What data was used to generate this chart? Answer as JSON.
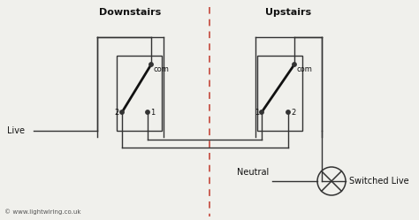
{
  "title_left": "Downstairs",
  "title_right": "Upstairs",
  "label_live": "Live",
  "label_neutral": "Neutral",
  "label_switched_live": "Switched Live",
  "label_com_left": "com",
  "label_com_right": "com",
  "label_1_left": "1",
  "label_2_left": "2",
  "label_1_right": "1",
  "label_2_right": "2",
  "label_copyright": "© www.lightwiring.co.uk",
  "bg_color": "#f0f0ec",
  "wire_color": "#333333",
  "dashed_line_color": "#c0392b",
  "switch_color": "#111111",
  "text_color": "#111111",
  "title_fontsize": 8,
  "label_fontsize": 7,
  "small_fontsize": 6,
  "copy_fontsize": 5
}
